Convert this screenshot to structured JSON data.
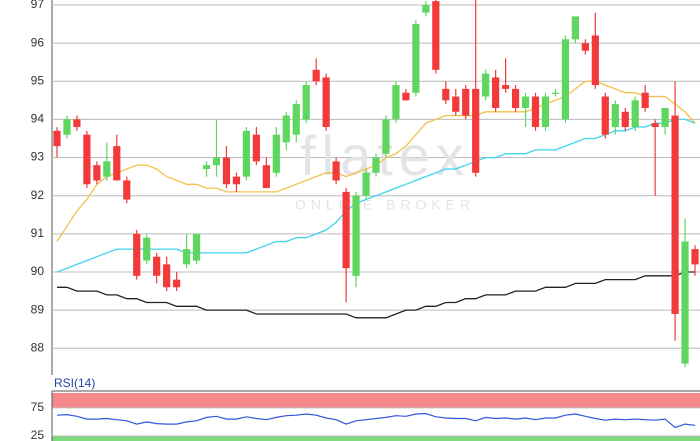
{
  "chart_data": [
    {
      "type": "candlestick",
      "watermark": "flatex",
      "watermark_subtitle": "ONLINE BROKER",
      "up_color": "#5fd65f",
      "down_color": "#f23a3a",
      "open": [
        93.7,
        93.6,
        94.0,
        93.6,
        92.8,
        92.5,
        93.3,
        92.4,
        91.0,
        90.3,
        90.4,
        90.2,
        89.8,
        90.2,
        90.3,
        92.7,
        92.8,
        93.0,
        92.5,
        92.5,
        93.6,
        92.8,
        92.6,
        93.4,
        93.6,
        94.0,
        95.3,
        95.1,
        92.9,
        92.1,
        89.9,
        92.0,
        92.6,
        93.1,
        94.0,
        94.7,
        94.7,
        96.8,
        97.1,
        94.8,
        94.6,
        94.8,
        94.8,
        94.6,
        95.1,
        94.9,
        94.8,
        94.3,
        94.6,
        93.8,
        94.7,
        94.0,
        96.1,
        96.0,
        96.2,
        94.6,
        93.8,
        94.2,
        93.8,
        94.7,
        93.9,
        93.8,
        94.1,
        87.6,
        90.6
      ],
      "high": [
        93.8,
        94.1,
        94.1,
        93.7,
        92.9,
        93.4,
        93.6,
        92.5,
        91.1,
        91.0,
        90.5,
        90.4,
        90.0,
        91.0,
        91.0,
        92.9,
        94.0,
        93.3,
        92.6,
        93.8,
        93.8,
        93.0,
        93.8,
        94.2,
        94.5,
        95.0,
        95.6,
        95.2,
        93.0,
        92.2,
        92.1,
        92.7,
        93.1,
        94.1,
        95.0,
        94.8,
        96.6,
        97.1,
        97.2,
        95.0,
        94.8,
        94.9,
        97.3,
        95.3,
        95.3,
        95.6,
        94.9,
        94.7,
        94.7,
        94.7,
        94.8,
        96.2,
        96.7,
        96.1,
        96.8,
        94.7,
        94.5,
        94.3,
        94.6,
        94.9,
        94.0,
        94.3,
        95.0,
        91.4,
        90.7
      ],
      "low": [
        93.0,
        93.5,
        93.7,
        92.2,
        92.3,
        92.4,
        92.4,
        91.8,
        89.8,
        90.2,
        89.7,
        89.5,
        89.5,
        90.1,
        90.2,
        92.5,
        92.5,
        92.2,
        92.1,
        92.4,
        92.8,
        92.2,
        92.5,
        93.2,
        93.4,
        93.9,
        94.9,
        93.7,
        92.3,
        89.2,
        89.6,
        91.9,
        92.5,
        93.0,
        93.9,
        94.5,
        94.6,
        96.7,
        95.2,
        94.4,
        94.1,
        94.0,
        92.5,
        94.5,
        94.2,
        94.7,
        94.2,
        93.8,
        93.7,
        93.7,
        94.6,
        93.9,
        96.0,
        95.7,
        94.8,
        93.5,
        93.6,
        93.7,
        93.7,
        94.2,
        92.0,
        93.6,
        88.2,
        87.5,
        89.9
      ],
      "close": [
        93.3,
        94.0,
        93.8,
        92.3,
        92.4,
        92.9,
        92.4,
        91.9,
        89.9,
        90.9,
        89.9,
        89.6,
        89.6,
        90.6,
        91.0,
        92.8,
        93.0,
        92.3,
        92.3,
        93.7,
        92.9,
        92.2,
        93.6,
        94.1,
        94.4,
        94.9,
        95.0,
        93.8,
        92.4,
        90.1,
        92.0,
        92.6,
        93.0,
        94.0,
        94.9,
        94.5,
        96.5,
        97.0,
        95.3,
        94.5,
        94.2,
        94.1,
        92.6,
        95.2,
        94.3,
        94.8,
        94.3,
        94.6,
        93.8,
        94.6,
        94.7,
        96.1,
        96.7,
        95.8,
        94.9,
        93.6,
        94.4,
        93.8,
        94.5,
        94.3,
        93.8,
        94.3,
        88.9,
        90.8,
        90.2
      ],
      "lines": [
        {
          "color": "#f5c04a",
          "values": [
            90.8,
            91.2,
            91.6,
            91.9,
            92.3,
            92.5,
            92.6,
            92.7,
            92.8,
            92.8,
            92.7,
            92.5,
            92.4,
            92.3,
            92.3,
            92.2,
            92.2,
            92.1,
            92.1,
            92.1,
            92.1,
            92.1,
            92.1,
            92.2,
            92.3,
            92.4,
            92.5,
            92.6,
            92.6,
            92.5,
            92.6,
            92.7,
            92.8,
            93.0,
            93.1,
            93.3,
            93.6,
            93.9,
            94.0,
            94.1,
            94.1,
            94.1,
            94.1,
            94.2,
            94.2,
            94.2,
            94.2,
            94.2,
            94.3,
            94.4,
            94.5,
            94.6,
            94.8,
            95.0,
            95.0,
            94.9,
            94.8,
            94.7,
            94.7,
            94.6,
            94.6,
            94.6,
            94.4,
            94.2,
            93.9
          ]
        },
        {
          "color": "#3fd3f0",
          "values": [
            90.0,
            90.1,
            90.2,
            90.3,
            90.4,
            90.5,
            90.6,
            90.6,
            90.6,
            90.6,
            90.6,
            90.6,
            90.6,
            90.5,
            90.5,
            90.5,
            90.5,
            90.5,
            90.5,
            90.5,
            90.6,
            90.7,
            90.8,
            90.8,
            90.9,
            90.9,
            91.0,
            91.1,
            91.3,
            91.6,
            91.8,
            91.9,
            92.0,
            92.1,
            92.2,
            92.3,
            92.4,
            92.5,
            92.6,
            92.7,
            92.7,
            92.8,
            92.9,
            93.0,
            93.0,
            93.1,
            93.1,
            93.1,
            93.2,
            93.2,
            93.2,
            93.3,
            93.4,
            93.5,
            93.5,
            93.6,
            93.7,
            93.7,
            93.8,
            93.8,
            93.9,
            93.9,
            94.0,
            94.0,
            93.9
          ]
        },
        {
          "color": "#222222",
          "values": [
            89.6,
            89.6,
            89.5,
            89.5,
            89.5,
            89.4,
            89.4,
            89.3,
            89.3,
            89.2,
            89.2,
            89.2,
            89.1,
            89.1,
            89.1,
            89.0,
            89.0,
            89.0,
            89.0,
            89.0,
            88.9,
            88.9,
            88.9,
            88.9,
            88.9,
            88.9,
            88.9,
            88.9,
            88.9,
            88.9,
            88.8,
            88.8,
            88.8,
            88.8,
            88.9,
            89.0,
            89.0,
            89.1,
            89.1,
            89.2,
            89.2,
            89.3,
            89.3,
            89.4,
            89.4,
            89.4,
            89.5,
            89.5,
            89.5,
            89.6,
            89.6,
            89.6,
            89.7,
            89.7,
            89.7,
            89.8,
            89.8,
            89.8,
            89.8,
            89.9,
            89.9,
            89.9,
            89.9,
            90.0,
            90.0
          ]
        }
      ],
      "ylim": [
        87.3,
        97.13
      ],
      "yticks": [
        88,
        89,
        90,
        91,
        92,
        93,
        94,
        95,
        96,
        97
      ],
      "grid": true
    },
    {
      "type": "line",
      "title": "RSI(14)",
      "color": "#3355dd",
      "values": [
        62,
        63,
        60,
        55,
        55,
        56,
        54,
        52,
        46,
        50,
        47,
        46,
        46,
        50,
        52,
        58,
        60,
        55,
        55,
        59,
        56,
        54,
        58,
        61,
        62,
        64,
        62,
        57,
        54,
        46,
        52,
        54,
        56,
        58,
        61,
        60,
        64,
        65,
        59,
        57,
        56,
        56,
        52,
        58,
        56,
        57,
        55,
        57,
        54,
        57,
        57,
        62,
        64,
        60,
        56,
        53,
        55,
        54,
        55,
        54,
        53,
        55,
        40,
        46,
        44
      ],
      "overbought": 75,
      "oversold": 25,
      "overbought_color": "#f4888a",
      "oversold_color": "#7fd97f",
      "ylim": [
        16,
        105
      ],
      "yticks": [
        75,
        25
      ],
      "grid": true
    }
  ]
}
